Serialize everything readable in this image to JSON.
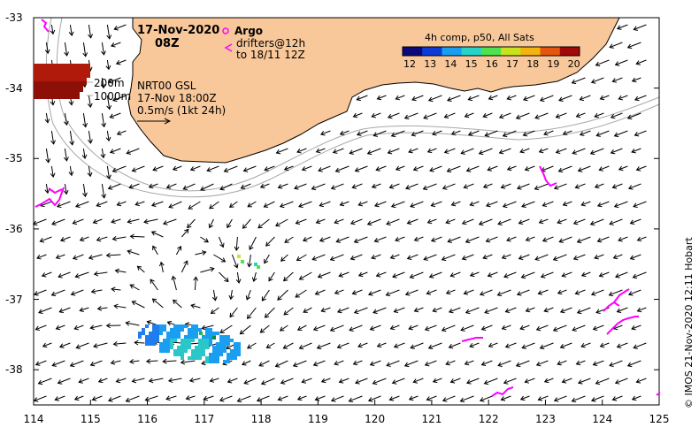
{
  "header": {
    "date": "17-Nov-2020",
    "time": "08Z",
    "argo_label": "Argo",
    "drifters_line1": "drifters@12h",
    "drifters_line2": "to 18/11 12Z",
    "depth_200": "200m",
    "depth_1000": "1000m",
    "nrt_line1": "NRT00 GSL",
    "nrt_line2": "17-Nov 18:00Z",
    "nrt_line3": "0.5m/s (1kt 24h)"
  },
  "colorbar": {
    "title": "4h comp, p50, All Sats",
    "ticks": [
      "12",
      "13",
      "14",
      "15",
      "16",
      "17",
      "18",
      "19",
      "20"
    ],
    "colors": [
      "#0a0a7a",
      "#0b3dd6",
      "#1a9ef0",
      "#27d2c8",
      "#4ee24e",
      "#c9e21e",
      "#f2b40f",
      "#e3560c",
      "#a20a0a"
    ]
  },
  "axes": {
    "x_ticks": [
      "114",
      "115",
      "116",
      "117",
      "118",
      "119",
      "120",
      "121",
      "122",
      "123",
      "124",
      "125"
    ],
    "y_ticks": [
      "-33",
      "-34",
      "-35",
      "-36",
      "-37",
      "-38"
    ],
    "lon_range": [
      114,
      125
    ],
    "lat_range": [
      -38.5,
      -33
    ]
  },
  "credit": "©  IMOS 21-Nov-2020 12:11 Hobart",
  "colors": {
    "land": "#f8c89a",
    "drifter": "#ff00ff",
    "isobath": "#a8a8a8"
  }
}
